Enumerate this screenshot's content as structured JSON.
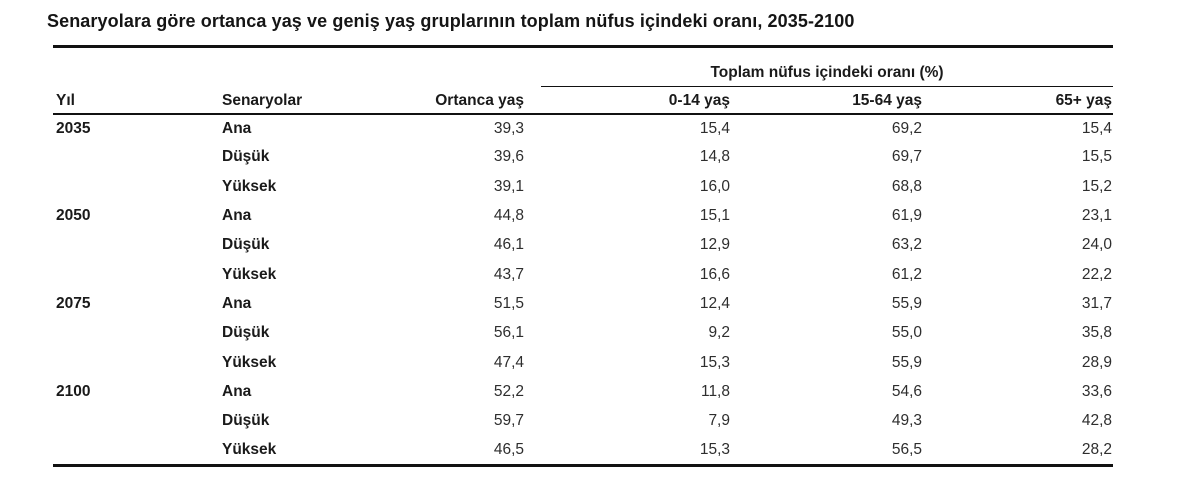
{
  "title": "Senaryolara göre ortanca yaş ve geniş yaş gruplarının toplam nüfus içindeki oranı, 2035-2100",
  "colors": {
    "background": "#ffffff",
    "text": "#1a1a1a",
    "rule": "#111111"
  },
  "table": {
    "span_header": "Toplam nüfus içindeki oranı (%)",
    "columns": {
      "year": "Yıl",
      "scenario": "Senaryolar",
      "median_age": "Ortanca yaş",
      "age_0_14": "0-14 yaş",
      "age_15_64": "15-64 yaş",
      "age_65_plus": "65+ yaş"
    },
    "rows": [
      {
        "year": "2035",
        "scenario": "Ana",
        "median_age": "39,3",
        "age_0_14": "15,4",
        "age_15_64": "69,2",
        "age_65_plus": "15,4"
      },
      {
        "year": "",
        "scenario": "Düşük",
        "median_age": "39,6",
        "age_0_14": "14,8",
        "age_15_64": "69,7",
        "age_65_plus": "15,5"
      },
      {
        "year": "",
        "scenario": "Yüksek",
        "median_age": "39,1",
        "age_0_14": "16,0",
        "age_15_64": "68,8",
        "age_65_plus": "15,2"
      },
      {
        "year": "2050",
        "scenario": "Ana",
        "median_age": "44,8",
        "age_0_14": "15,1",
        "age_15_64": "61,9",
        "age_65_plus": "23,1"
      },
      {
        "year": "",
        "scenario": "Düşük",
        "median_age": "46,1",
        "age_0_14": "12,9",
        "age_15_64": "63,2",
        "age_65_plus": "24,0"
      },
      {
        "year": "",
        "scenario": "Yüksek",
        "median_age": "43,7",
        "age_0_14": "16,6",
        "age_15_64": "61,2",
        "age_65_plus": "22,2"
      },
      {
        "year": "2075",
        "scenario": "Ana",
        "median_age": "51,5",
        "age_0_14": "12,4",
        "age_15_64": "55,9",
        "age_65_plus": "31,7"
      },
      {
        "year": "",
        "scenario": "Düşük",
        "median_age": "56,1",
        "age_0_14": "9,2",
        "age_15_64": "55,0",
        "age_65_plus": "35,8"
      },
      {
        "year": "",
        "scenario": "Yüksek",
        "median_age": "47,4",
        "age_0_14": "15,3",
        "age_15_64": "55,9",
        "age_65_plus": "28,9"
      },
      {
        "year": "2100",
        "scenario": "Ana",
        "median_age": "52,2",
        "age_0_14": "11,8",
        "age_15_64": "54,6",
        "age_65_plus": "33,6"
      },
      {
        "year": "",
        "scenario": "Düşük",
        "median_age": "59,7",
        "age_0_14": "7,9",
        "age_15_64": "49,3",
        "age_65_plus": "42,8"
      },
      {
        "year": "",
        "scenario": "Yüksek",
        "median_age": "46,5",
        "age_0_14": "15,3",
        "age_15_64": "56,5",
        "age_65_plus": "28,2"
      }
    ]
  }
}
